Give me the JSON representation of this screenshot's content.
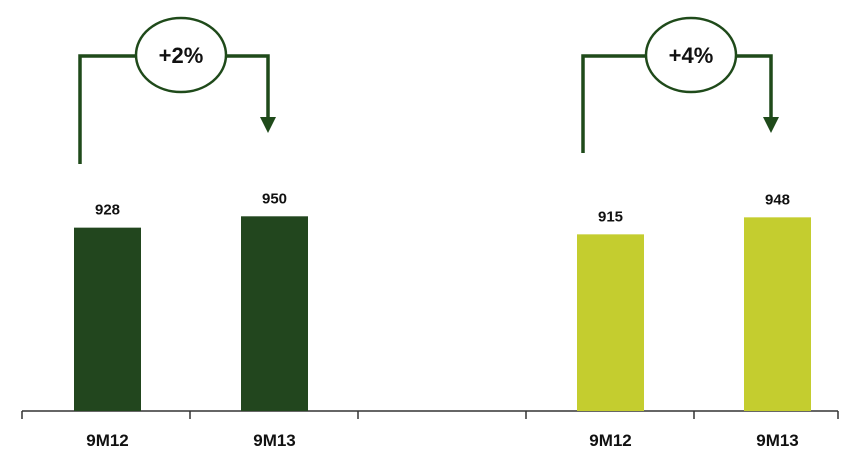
{
  "chart_data": [
    {
      "type": "bar",
      "categories": [
        "9M12",
        "9M13"
      ],
      "values": [
        928,
        950
      ],
      "value_labels": [
        "928",
        "950"
      ],
      "change_label": "+2%",
      "color": "#22461e"
    },
    {
      "type": "bar",
      "categories": [
        "9M12",
        "9M13"
      ],
      "values": [
        915,
        948
      ],
      "value_labels": [
        "915",
        "948"
      ],
      "change_label": "+4%",
      "color": "#c4cd2f"
    }
  ],
  "styles": {
    "accent_dark": "#1f4a1a",
    "axis_color": "#333333"
  }
}
